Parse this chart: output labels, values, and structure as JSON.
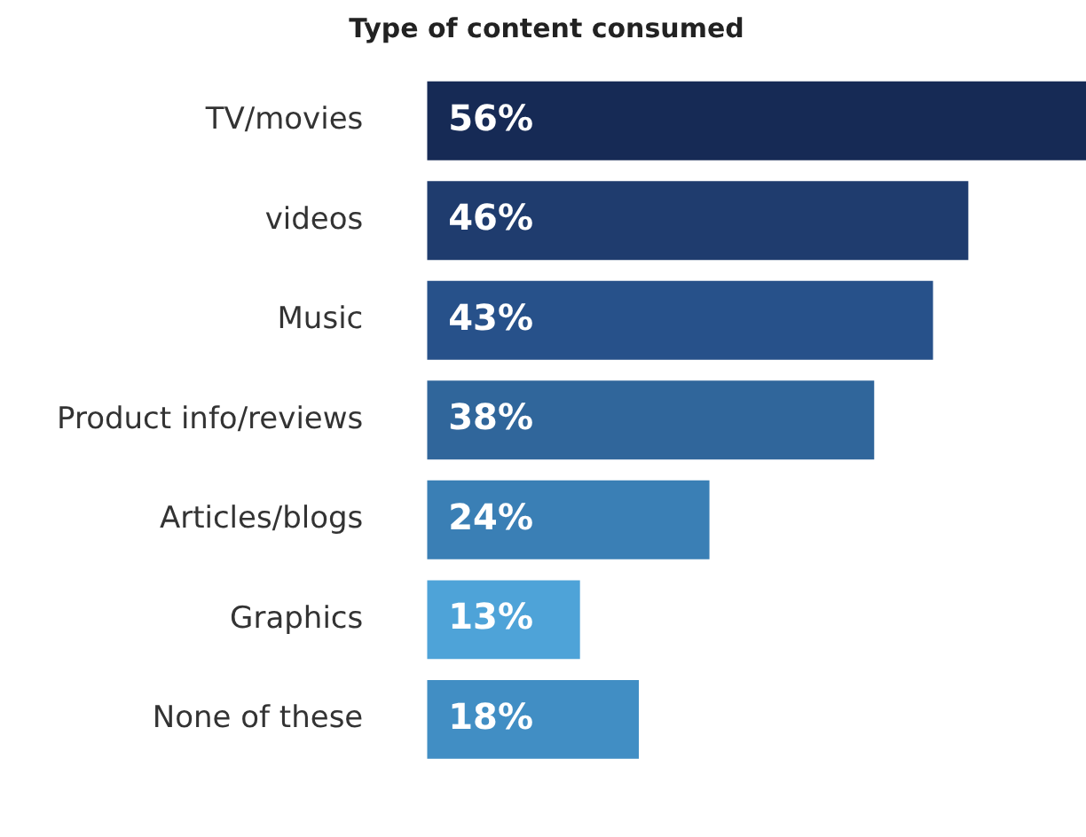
{
  "chart_data": {
    "type": "bar",
    "orientation": "horizontal",
    "title": "Type of content consumed",
    "categories": [
      "TV/movies",
      "videos",
      "Music",
      "Product info/reviews",
      "Articles/blogs",
      "Graphics",
      "None of these"
    ],
    "values": [
      56,
      46,
      43,
      38,
      24,
      13,
      18
    ],
    "colors": [
      "#162a55",
      "#1f3c6e",
      "#27518a",
      "#30669b",
      "#3a7fb5",
      "#4ea3d8",
      "#418ec4"
    ],
    "value_labels": [
      "56%",
      "46%",
      "43%",
      "38%",
      "24%",
      "13%",
      "18%"
    ],
    "grid": false,
    "legend": false
  }
}
